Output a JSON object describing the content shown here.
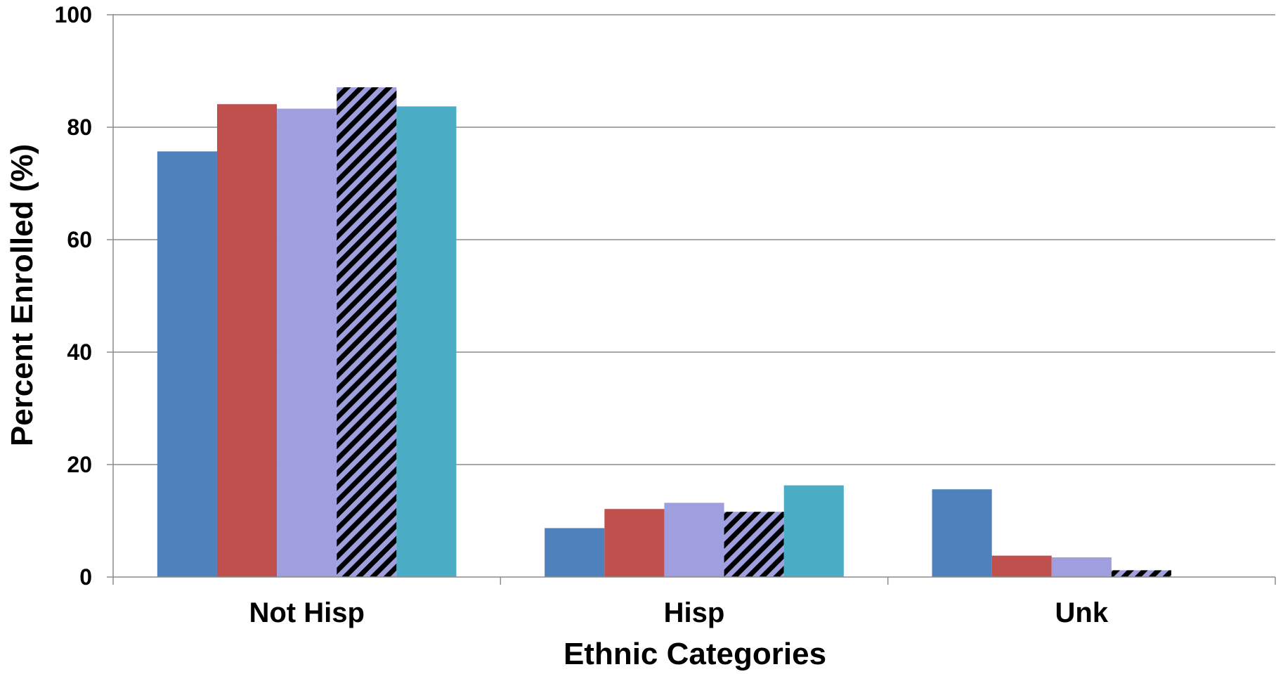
{
  "chart_data": {
    "type": "bar",
    "title": "",
    "xlabel": "Ethnic Categories",
    "ylabel": "Percent Enrolled (%)",
    "ylim": [
      0,
      100
    ],
    "yticks": [
      0,
      20,
      40,
      60,
      80,
      100
    ],
    "grid": "horizontal",
    "legend": "none",
    "categories": [
      "Not Hisp",
      "Hisp",
      "Unk"
    ],
    "series": [
      {
        "color": "#4F81BD",
        "pattern": "solid",
        "values": [
          75.7,
          8.7,
          15.6
        ]
      },
      {
        "color": "#C0504D",
        "pattern": "solid",
        "values": [
          84.1,
          12.1,
          3.8
        ]
      },
      {
        "color": "#9F9FDF",
        "pattern": "solid",
        "values": [
          83.3,
          13.2,
          3.5
        ]
      },
      {
        "color": "#9F9FDF",
        "pattern": "diagonal-stripes",
        "stripe_color": "#000000",
        "values": [
          87.1,
          11.6,
          1.2
        ]
      },
      {
        "color": "#4BACC6",
        "pattern": "solid",
        "values": [
          83.7,
          16.3,
          0
        ]
      }
    ]
  }
}
